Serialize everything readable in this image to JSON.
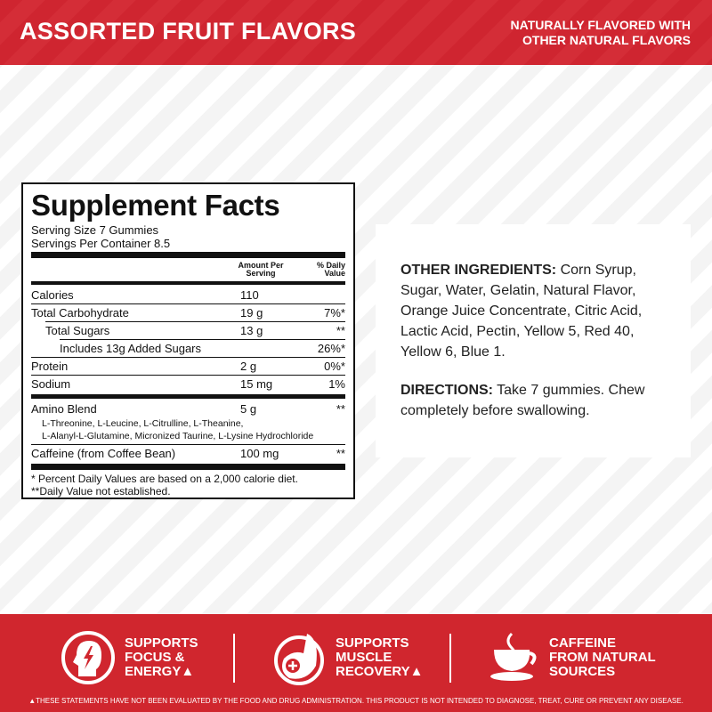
{
  "header": {
    "title": "ASSORTED FRUIT FLAVORS",
    "natural_line1": "NATURALLY FLAVORED WITH",
    "natural_line2": "OTHER NATURAL FLAVORS"
  },
  "label": {
    "title": "Supplement Facts",
    "serving_size": "Serving Size 7 Gummies",
    "servings_per_container": "Servings Per Container 8.5",
    "col_amount": "Amount Per Serving",
    "col_dv": "% Daily Value",
    "rows": [
      {
        "name": "Calories",
        "amount": "110",
        "dv": ""
      },
      {
        "name": "Total Carbohydrate",
        "amount": "19 g",
        "dv": "7%*"
      },
      {
        "name": "Total Sugars",
        "amount": "13 g",
        "dv": "**"
      },
      {
        "name": "Includes 13g Added Sugars",
        "amount": "",
        "dv": "26%*"
      },
      {
        "name": "Protein",
        "amount": "2 g",
        "dv": "0%*"
      },
      {
        "name": "Sodium",
        "amount": "15 mg",
        "dv": "1%"
      },
      {
        "name": "Amino Blend",
        "amount": "5 g",
        "dv": "**"
      },
      {
        "name": "Caffeine (from Coffee Bean)",
        "amount": "100 mg",
        "dv": "**"
      }
    ],
    "amino_line1": "L-Threonine, L-Leucine, L-Citrulline, L-Theanine,",
    "amino_line2": "L-Alanyl-L-Glutamine, Micronized Taurine, L-Lysine Hydrochloride",
    "footnote1": "* Percent Daily Values are based on a 2,000 calorie diet.",
    "footnote2": "**Daily Value not established."
  },
  "info": {
    "ingredients_label": "OTHER INGREDIENTS:",
    "ingredients": " Corn Syrup, Sugar, Water, Gelatin, Natural Flavor, Orange Juice Concentrate, Citric Acid, Lactic Acid, Pectin, Yellow 5, Red 40, Yellow 6, Blue 1.",
    "directions_label": "DIRECTIONS:",
    "directions": " Take 7 gummies. Chew completely before swallowing."
  },
  "footer": {
    "features": [
      {
        "icon": "head-lightning-icon",
        "l1": "Supports",
        "l2": "Focus &",
        "l3": "Energy▲"
      },
      {
        "icon": "muscle-arm-icon",
        "l1": "Supports",
        "l2": "Muscle",
        "l3": "Recovery▲"
      },
      {
        "icon": "coffee-cup-icon",
        "l1": "Caffeine",
        "l2": "from Natural",
        "l3": "Sources"
      }
    ],
    "disclaimer": "▲THESE STATEMENTS HAVE NOT BEEN EVALUATED BY THE FOOD AND DRUG ADMINISTRATION. THIS PRODUCT IS NOT INTENDED TO DIAGNOSE, TREAT, CURE OR PREVENT ANY DISEASE."
  },
  "colors": {
    "brand_red": "#d0262e"
  }
}
